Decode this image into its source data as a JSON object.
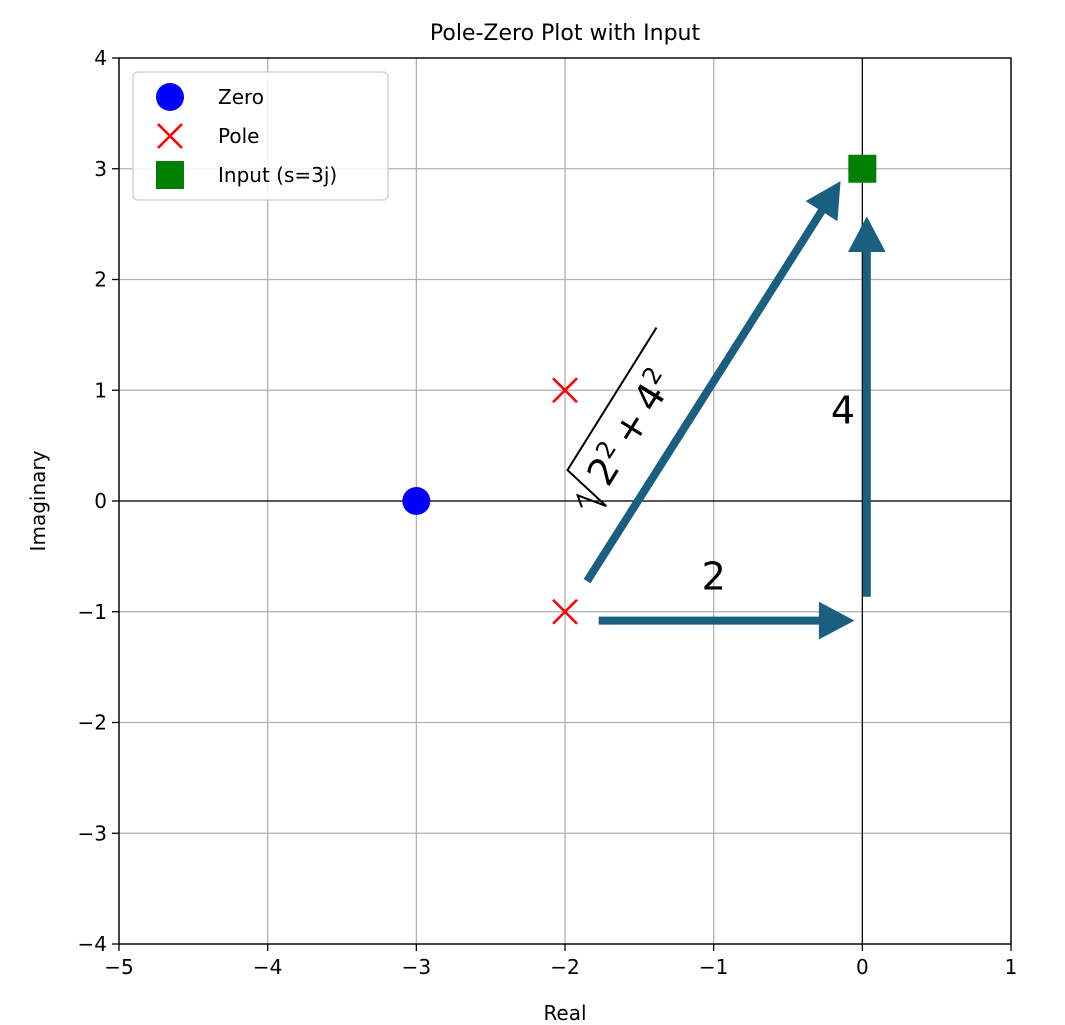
{
  "chart_data": {
    "type": "scatter",
    "title": "Pole-Zero Plot with Input",
    "xlabel": "Real",
    "ylabel": "Imaginary",
    "xlim": [
      -5,
      1
    ],
    "ylim": [
      -4,
      4
    ],
    "x_ticks": [
      -5,
      -4,
      -3,
      -2,
      -1,
      0,
      1
    ],
    "y_ticks": [
      -4,
      -3,
      -2,
      -1,
      0,
      1,
      2,
      3,
      4
    ],
    "x_tick_labels": [
      "−5",
      "−4",
      "−3",
      "−2",
      "−1",
      "0",
      "1"
    ],
    "y_tick_labels": [
      "−4",
      "−3",
      "−2",
      "−1",
      "0",
      "1",
      "2",
      "3",
      "4"
    ],
    "grid": true,
    "legend_position": "top-left",
    "series": [
      {
        "name": "Zero",
        "marker": "circle",
        "color": "#0000ff",
        "points": [
          [
            -3,
            0
          ]
        ]
      },
      {
        "name": "Pole",
        "marker": "x",
        "color": "#ff0000",
        "points": [
          [
            -2,
            1
          ],
          [
            -2,
            -1
          ]
        ]
      },
      {
        "name": "Input (s=3j)",
        "marker": "square",
        "color": "#008000",
        "points": [
          [
            0,
            3
          ]
        ]
      }
    ],
    "arrows": [
      {
        "from": [
          -1.77,
          -1.08
        ],
        "to": [
          -0.06,
          -1.08
        ]
      },
      {
        "from": [
          0.03,
          -0.86
        ],
        "to": [
          0.03,
          2.56
        ]
      },
      {
        "from": [
          -1.85,
          -0.72
        ],
        "to": [
          -0.15,
          2.88
        ]
      }
    ],
    "arrow_color": "#1a5e80",
    "annotations": [
      {
        "text": "2",
        "x": -1.0,
        "y": -0.8
      },
      {
        "text": "4",
        "x": -0.13,
        "y": 0.7
      }
    ],
    "hypotenuse_label": {
      "expression": "2² + 4²",
      "base1": "2",
      "exp1": "2",
      "plus": "+",
      "base2": "4",
      "exp2": "2",
      "x": -1.49,
      "y": 0.76,
      "angle_deg": 58
    }
  }
}
